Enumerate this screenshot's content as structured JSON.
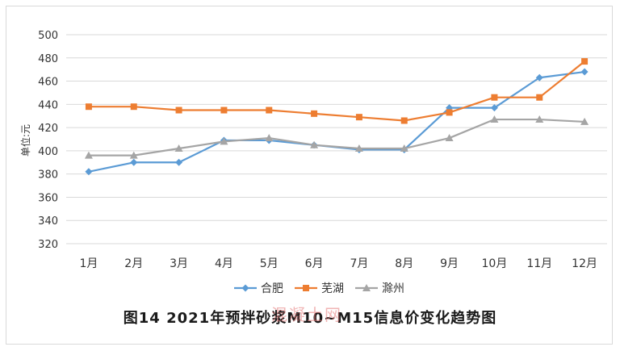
{
  "chart_data": {
    "type": "line",
    "title": "图14    2021年预拌砂浆M10~M15信息价变化趋势图",
    "ylabel": "单位:元",
    "xlabel": "",
    "ylim": [
      320,
      500
    ],
    "yticks": [
      320,
      340,
      360,
      380,
      400,
      420,
      440,
      460,
      480,
      500
    ],
    "grid": true,
    "legend_position": "bottom",
    "categories": [
      "1月",
      "2月",
      "3月",
      "4月",
      "5月",
      "6月",
      "7月",
      "8月",
      "9月",
      "10月",
      "11月",
      "12月"
    ],
    "series": [
      {
        "name": "合肥",
        "color": "#5b9bd5",
        "marker": "diamond",
        "values": [
          382,
          390,
          390,
          409,
          409,
          405,
          401,
          401,
          437,
          437,
          463,
          468
        ]
      },
      {
        "name": "芜湖",
        "color": "#ed7d31",
        "marker": "square",
        "values": [
          438,
          438,
          435,
          435,
          435,
          432,
          429,
          426,
          433,
          446,
          446,
          477
        ]
      },
      {
        "name": "滁州",
        "color": "#a5a5a5",
        "marker": "triangle",
        "values": [
          396,
          396,
          402,
          408,
          411,
          405,
          402,
          402,
          411,
          427,
          427,
          425
        ]
      }
    ]
  },
  "watermark": "混凝土网"
}
